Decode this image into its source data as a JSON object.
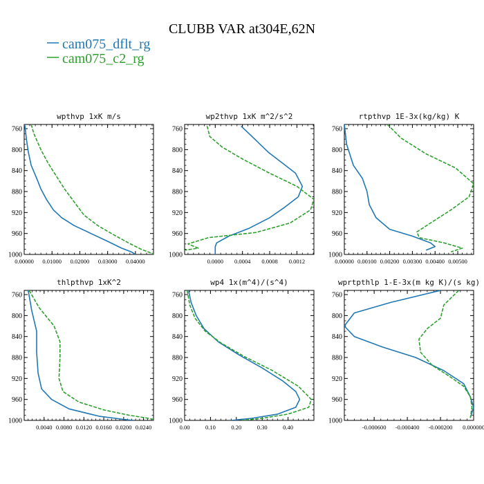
{
  "figure": {
    "title": "CLUBB VAR at304E,62N",
    "legend": [
      {
        "name": "cam075_dflt_rg",
        "color": "#1f77b4",
        "style": "solid"
      },
      {
        "name": "cam075_c2_rg",
        "color": "#2ca02c",
        "style": "dashed"
      }
    ]
  },
  "chart_data": [
    {
      "type": "line",
      "title": "wpthvp  1xK m/s",
      "xlim": [
        0,
        0.0465
      ],
      "ylim": [
        1000,
        752
      ],
      "xticks": [
        0,
        0.01,
        0.02,
        0.03,
        0.04
      ],
      "xtick_labels": [
        "0.00000",
        "0.01000",
        "0.02000",
        "0.03000",
        "0.04000"
      ],
      "yticks": [
        760,
        800,
        840,
        880,
        920,
        960,
        1000
      ],
      "series": [
        {
          "name": "cam075_dflt_rg",
          "points": [
            [
              0.0002,
              752
            ],
            [
              0.0008,
              780
            ],
            [
              0.0015,
              805
            ],
            [
              0.0025,
              830
            ],
            [
              0.0045,
              855
            ],
            [
              0.006,
              875
            ],
            [
              0.008,
              895
            ],
            [
              0.0105,
              915
            ],
            [
              0.0135,
              930
            ],
            [
              0.018,
              945
            ],
            [
              0.024,
              960
            ],
            [
              0.03,
              975
            ],
            [
              0.035,
              988
            ],
            [
              0.0385,
              995
            ],
            [
              0.04,
              1000
            ]
          ]
        },
        {
          "name": "cam075_c2_rg",
          "points": [
            [
              0.0025,
              752
            ],
            [
              0.0035,
              770
            ],
            [
              0.006,
              800
            ],
            [
              0.0085,
              825
            ],
            [
              0.0115,
              850
            ],
            [
              0.0145,
              875
            ],
            [
              0.018,
              900
            ],
            [
              0.0215,
              925
            ],
            [
              0.0265,
              945
            ],
            [
              0.032,
              962
            ],
            [
              0.0375,
              978
            ],
            [
              0.042,
              990
            ],
            [
              0.045,
              996
            ],
            [
              0.0465,
              1000
            ]
          ]
        }
      ]
    },
    {
      "type": "line",
      "title": "wp2thvp  1xK m^2/s^2",
      "xlim": [
        -0.00045,
        0.00145
      ],
      "ylim": [
        1000,
        752
      ],
      "xticks": [
        0,
        0.0004,
        0.0008,
        0.0012
      ],
      "xtick_labels": [
        "0.0000",
        "0.0004",
        "0.0008",
        "0.0012"
      ],
      "yticks": [
        760,
        800,
        840,
        880,
        920,
        960,
        1000
      ],
      "series": [
        {
          "name": "cam075_dflt_rg",
          "points": [
            [
              0.00038,
              755
            ],
            [
              0.00058,
              780
            ],
            [
              0.00078,
              805
            ],
            [
              0.00098,
              825
            ],
            [
              0.00118,
              845
            ],
            [
              0.00128,
              870
            ],
            [
              0.00122,
              890
            ],
            [
              0.00102,
              910
            ],
            [
              0.0008,
              930
            ],
            [
              0.0005,
              950
            ],
            [
              0.0002,
              965
            ],
            [
              2e-05,
              978
            ],
            [
              0.0,
              985
            ],
            [
              0.0,
              1000
            ]
          ]
        },
        {
          "name": "cam075_c2_rg",
          "points": [
            [
              -0.00012,
              755
            ],
            [
              -8e-05,
              775
            ],
            [
              0.0001,
              795
            ],
            [
              0.0004,
              818
            ],
            [
              0.0008,
              845
            ],
            [
              0.0012,
              870
            ],
            [
              0.00145,
              895
            ],
            [
              0.0014,
              915
            ],
            [
              0.0011,
              940
            ],
            [
              0.0006,
              958
            ],
            [
              -0.0001,
              968
            ],
            [
              -0.0004,
              980
            ],
            [
              -0.00025,
              988
            ],
            [
              -0.00045,
              992
            ]
          ]
        }
      ]
    },
    {
      "type": "line",
      "title": "rtpthvp  1E-3x(kg/kg) K",
      "xlim": [
        0,
        0.0057
      ],
      "ylim": [
        1000,
        752
      ],
      "xticks": [
        0,
        0.001,
        0.002,
        0.003,
        0.004,
        0.005
      ],
      "xtick_labels": [
        "0.00000",
        "0.00100",
        "0.00200",
        "0.00300",
        "0.00400",
        "0.00500"
      ],
      "yticks": [
        760,
        800,
        840,
        880,
        920,
        960,
        1000
      ],
      "series": [
        {
          "name": "cam075_dflt_rg",
          "points": [
            [
              0.0,
              752
            ],
            [
              0.0001,
              790
            ],
            [
              0.0004,
              830
            ],
            [
              0.0008,
              855
            ],
            [
              0.001,
              880
            ],
            [
              0.0011,
              905
            ],
            [
              0.0014,
              930
            ],
            [
              0.002,
              952
            ],
            [
              0.003,
              965
            ],
            [
              0.0038,
              978
            ],
            [
              0.004,
              985
            ],
            [
              0.0036,
              992
            ]
          ]
        },
        {
          "name": "cam075_c2_rg",
          "points": [
            [
              0.0019,
              752
            ],
            [
              0.0025,
              778
            ],
            [
              0.0036,
              808
            ],
            [
              0.0049,
              835
            ],
            [
              0.0057,
              865
            ],
            [
              0.0055,
              890
            ],
            [
              0.0047,
              915
            ],
            [
              0.0038,
              940
            ],
            [
              0.0032,
              957
            ],
            [
              0.0033,
              968
            ],
            [
              0.0044,
              978
            ],
            [
              0.0052,
              988
            ],
            [
              0.0047,
              995
            ]
          ]
        }
      ]
    },
    {
      "type": "line",
      "title": "thlpthvp  1xK^2",
      "xlim": [
        0,
        0.026
      ],
      "ylim": [
        1000,
        752
      ],
      "xticks": [
        0.004,
        0.008,
        0.012,
        0.016,
        0.02,
        0.024
      ],
      "xtick_labels": [
        "0.0040",
        "0.0080",
        "0.0120",
        "0.0160",
        "0.0200",
        "0.0240"
      ],
      "yticks": [
        760,
        800,
        840,
        880,
        920,
        960,
        1000
      ],
      "series": [
        {
          "name": "cam075_dflt_rg",
          "points": [
            [
              0.0008,
              752
            ],
            [
              0.0015,
              790
            ],
            [
              0.0025,
              830
            ],
            [
              0.0025,
              870
            ],
            [
              0.0028,
              910
            ],
            [
              0.0035,
              940
            ],
            [
              0.0055,
              960
            ],
            [
              0.009,
              978
            ],
            [
              0.015,
              992
            ],
            [
              0.02,
              998
            ],
            [
              0.022,
              1000
            ]
          ]
        },
        {
          "name": "cam075_c2_rg",
          "points": [
            [
              0.001,
              752
            ],
            [
              0.003,
              785
            ],
            [
              0.006,
              820
            ],
            [
              0.0072,
              850
            ],
            [
              0.0072,
              880
            ],
            [
              0.007,
              920
            ],
            [
              0.0078,
              945
            ],
            [
              0.011,
              965
            ],
            [
              0.016,
              980
            ],
            [
              0.021,
              990
            ],
            [
              0.025,
              996
            ],
            [
              0.026,
              998
            ]
          ]
        }
      ]
    },
    {
      "type": "line",
      "title": "wp4  1x(m^4)/(s^4)",
      "xlim": [
        0,
        0.5
      ],
      "ylim": [
        1000,
        752
      ],
      "xticks": [
        0,
        0.1,
        0.2,
        0.3,
        0.4
      ],
      "xtick_labels": [
        "0.00",
        "0.10",
        "0.20",
        "0.30",
        "0.40"
      ],
      "yticks": [
        760,
        800,
        840,
        880,
        920,
        960,
        1000
      ],
      "series": [
        {
          "name": "cam075_dflt_rg",
          "points": [
            [
              0.015,
              752
            ],
            [
              0.025,
              775
            ],
            [
              0.045,
              800
            ],
            [
              0.075,
              825
            ],
            [
              0.13,
              850
            ],
            [
              0.21,
              875
            ],
            [
              0.3,
              900
            ],
            [
              0.38,
              925
            ],
            [
              0.43,
              945
            ],
            [
              0.445,
              960
            ],
            [
              0.43,
              975
            ],
            [
              0.36,
              988
            ],
            [
              0.26,
              996
            ],
            [
              0.18,
              1000
            ]
          ]
        },
        {
          "name": "cam075_c2_rg",
          "points": [
            [
              0.01,
              752
            ],
            [
              0.02,
              780
            ],
            [
              0.04,
              805
            ],
            [
              0.08,
              830
            ],
            [
              0.14,
              852
            ],
            [
              0.23,
              878
            ],
            [
              0.34,
              905
            ],
            [
              0.44,
              935
            ],
            [
              0.49,
              960
            ],
            [
              0.48,
              975
            ],
            [
              0.4,
              988
            ],
            [
              0.3,
              996
            ],
            [
              0.22,
              1000
            ]
          ]
        }
      ]
    },
    {
      "type": "line",
      "title": "wprtpthlp  1-E-3x(m kg K)/(s kg)",
      "xlim": [
        -0.00078,
        0
      ],
      "ylim": [
        1000,
        752
      ],
      "xticks": [
        -0.0006,
        -0.0004,
        -0.0002,
        0
      ],
      "xtick_labels": [
        "-0.000600",
        "-0.000400",
        "-0.000200",
        "0.000000"
      ],
      "yticks": [
        760,
        800,
        840,
        880,
        920,
        960,
        1000
      ],
      "series": [
        {
          "name": "cam075_dflt_rg",
          "points": [
            [
              -0.0002,
              752
            ],
            [
              -0.0005,
              775
            ],
            [
              -0.00072,
              795
            ],
            [
              -0.00078,
              820
            ],
            [
              -0.00072,
              840
            ],
            [
              -0.00055,
              860
            ],
            [
              -0.00035,
              880
            ],
            [
              -0.00018,
              905
            ],
            [
              -6e-05,
              930
            ],
            [
              -2e-05,
              955
            ],
            [
              0.0,
              975
            ],
            [
              -2e-05,
              995
            ]
          ]
        },
        {
          "name": "cam075_c2_rg",
          "points": [
            [
              -9e-05,
              752
            ],
            [
              -0.00018,
              780
            ],
            [
              -0.0002,
              805
            ],
            [
              -0.00028,
              825
            ],
            [
              -0.00033,
              845
            ],
            [
              -0.00032,
              870
            ],
            [
              -0.00025,
              895
            ],
            [
              -0.00015,
              915
            ],
            [
              -6e-05,
              935
            ],
            [
              -2e-05,
              955
            ],
            [
              -1e-05,
              975
            ],
            [
              -2e-05,
              995
            ]
          ]
        }
      ]
    }
  ]
}
